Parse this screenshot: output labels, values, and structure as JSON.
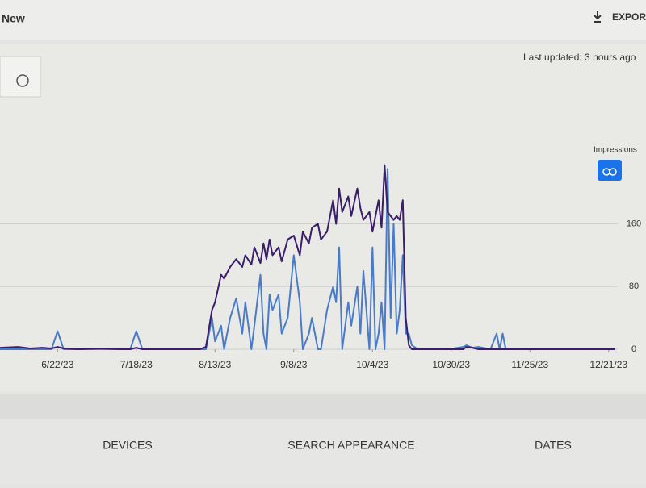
{
  "header": {
    "title": "New",
    "export": "EXPORT",
    "last_updated": "Last updated: 3 hours ago"
  },
  "chart_data": {
    "type": "line",
    "y_axis_label": "Impressions",
    "x": [
      2,
      8,
      12,
      16,
      19,
      21,
      23,
      28,
      35,
      42,
      45,
      47,
      49,
      55,
      62,
      68,
      70,
      72,
      73,
      75,
      76,
      78,
      80,
      82,
      83,
      85,
      86,
      88,
      89,
      90,
      91,
      92,
      94,
      95,
      97,
      99,
      101,
      102,
      104,
      105,
      107,
      108,
      110,
      112,
      113,
      114,
      115,
      117,
      118,
      120,
      121,
      122,
      124,
      125,
      126,
      127,
      128,
      129,
      130,
      131,
      132,
      133,
      134,
      135,
      136,
      137,
      138,
      140,
      145,
      150,
      155,
      156,
      158,
      160,
      164,
      166,
      167,
      168,
      169,
      175,
      185,
      195,
      205
    ],
    "series": [
      {
        "color": "#3a1d6b",
        "values": [
          2,
          3,
          1,
          2,
          1,
          3,
          1,
          0,
          1,
          0,
          0,
          2,
          0,
          0,
          0,
          0,
          3,
          50,
          60,
          95,
          90,
          105,
          115,
          105,
          120,
          108,
          130,
          110,
          135,
          115,
          140,
          120,
          130,
          112,
          140,
          145,
          120,
          150,
          135,
          155,
          160,
          140,
          150,
          190,
          160,
          205,
          175,
          195,
          170,
          205,
          180,
          165,
          175,
          150,
          170,
          190,
          155,
          235,
          175,
          170,
          165,
          170,
          165,
          190,
          40,
          5,
          0,
          0,
          0,
          0,
          0,
          3,
          2,
          0,
          0,
          0,
          0,
          0,
          0,
          0,
          0,
          0,
          0
        ]
      },
      {
        "color": "#4a7bc8",
        "values": [
          0,
          0,
          0,
          0,
          0,
          23,
          0,
          0,
          0,
          0,
          0,
          23,
          0,
          0,
          0,
          0,
          0,
          40,
          10,
          30,
          0,
          40,
          65,
          20,
          60,
          0,
          30,
          95,
          20,
          0,
          70,
          50,
          70,
          20,
          40,
          120,
          60,
          0,
          20,
          40,
          0,
          0,
          50,
          80,
          60,
          130,
          0,
          60,
          30,
          80,
          20,
          100,
          0,
          130,
          0,
          20,
          60,
          0,
          230,
          40,
          160,
          20,
          50,
          120,
          20,
          20,
          5,
          0,
          0,
          0,
          3,
          5,
          2,
          3,
          0,
          20,
          0,
          20,
          0,
          0,
          0,
          0,
          0
        ]
      }
    ],
    "xlim": [
      2,
      206
    ],
    "xticks": [
      {
        "value": 21,
        "label": "6/22/23"
      },
      {
        "value": 47,
        "label": "7/18/23"
      },
      {
        "value": 73,
        "label": "8/13/23"
      },
      {
        "value": 99,
        "label": "9/8/23"
      },
      {
        "value": 125,
        "label": "10/4/23"
      },
      {
        "value": 151,
        "label": "10/30/23"
      },
      {
        "value": 177,
        "label": "11/25/23"
      },
      {
        "value": 203,
        "label": "12/21/23"
      }
    ],
    "ylim": [
      0,
      250
    ],
    "yticks": [
      0,
      80,
      160
    ],
    "grid": true
  },
  "tabs": [
    "DEVICES",
    "SEARCH APPEARANCE",
    "DATES"
  ]
}
